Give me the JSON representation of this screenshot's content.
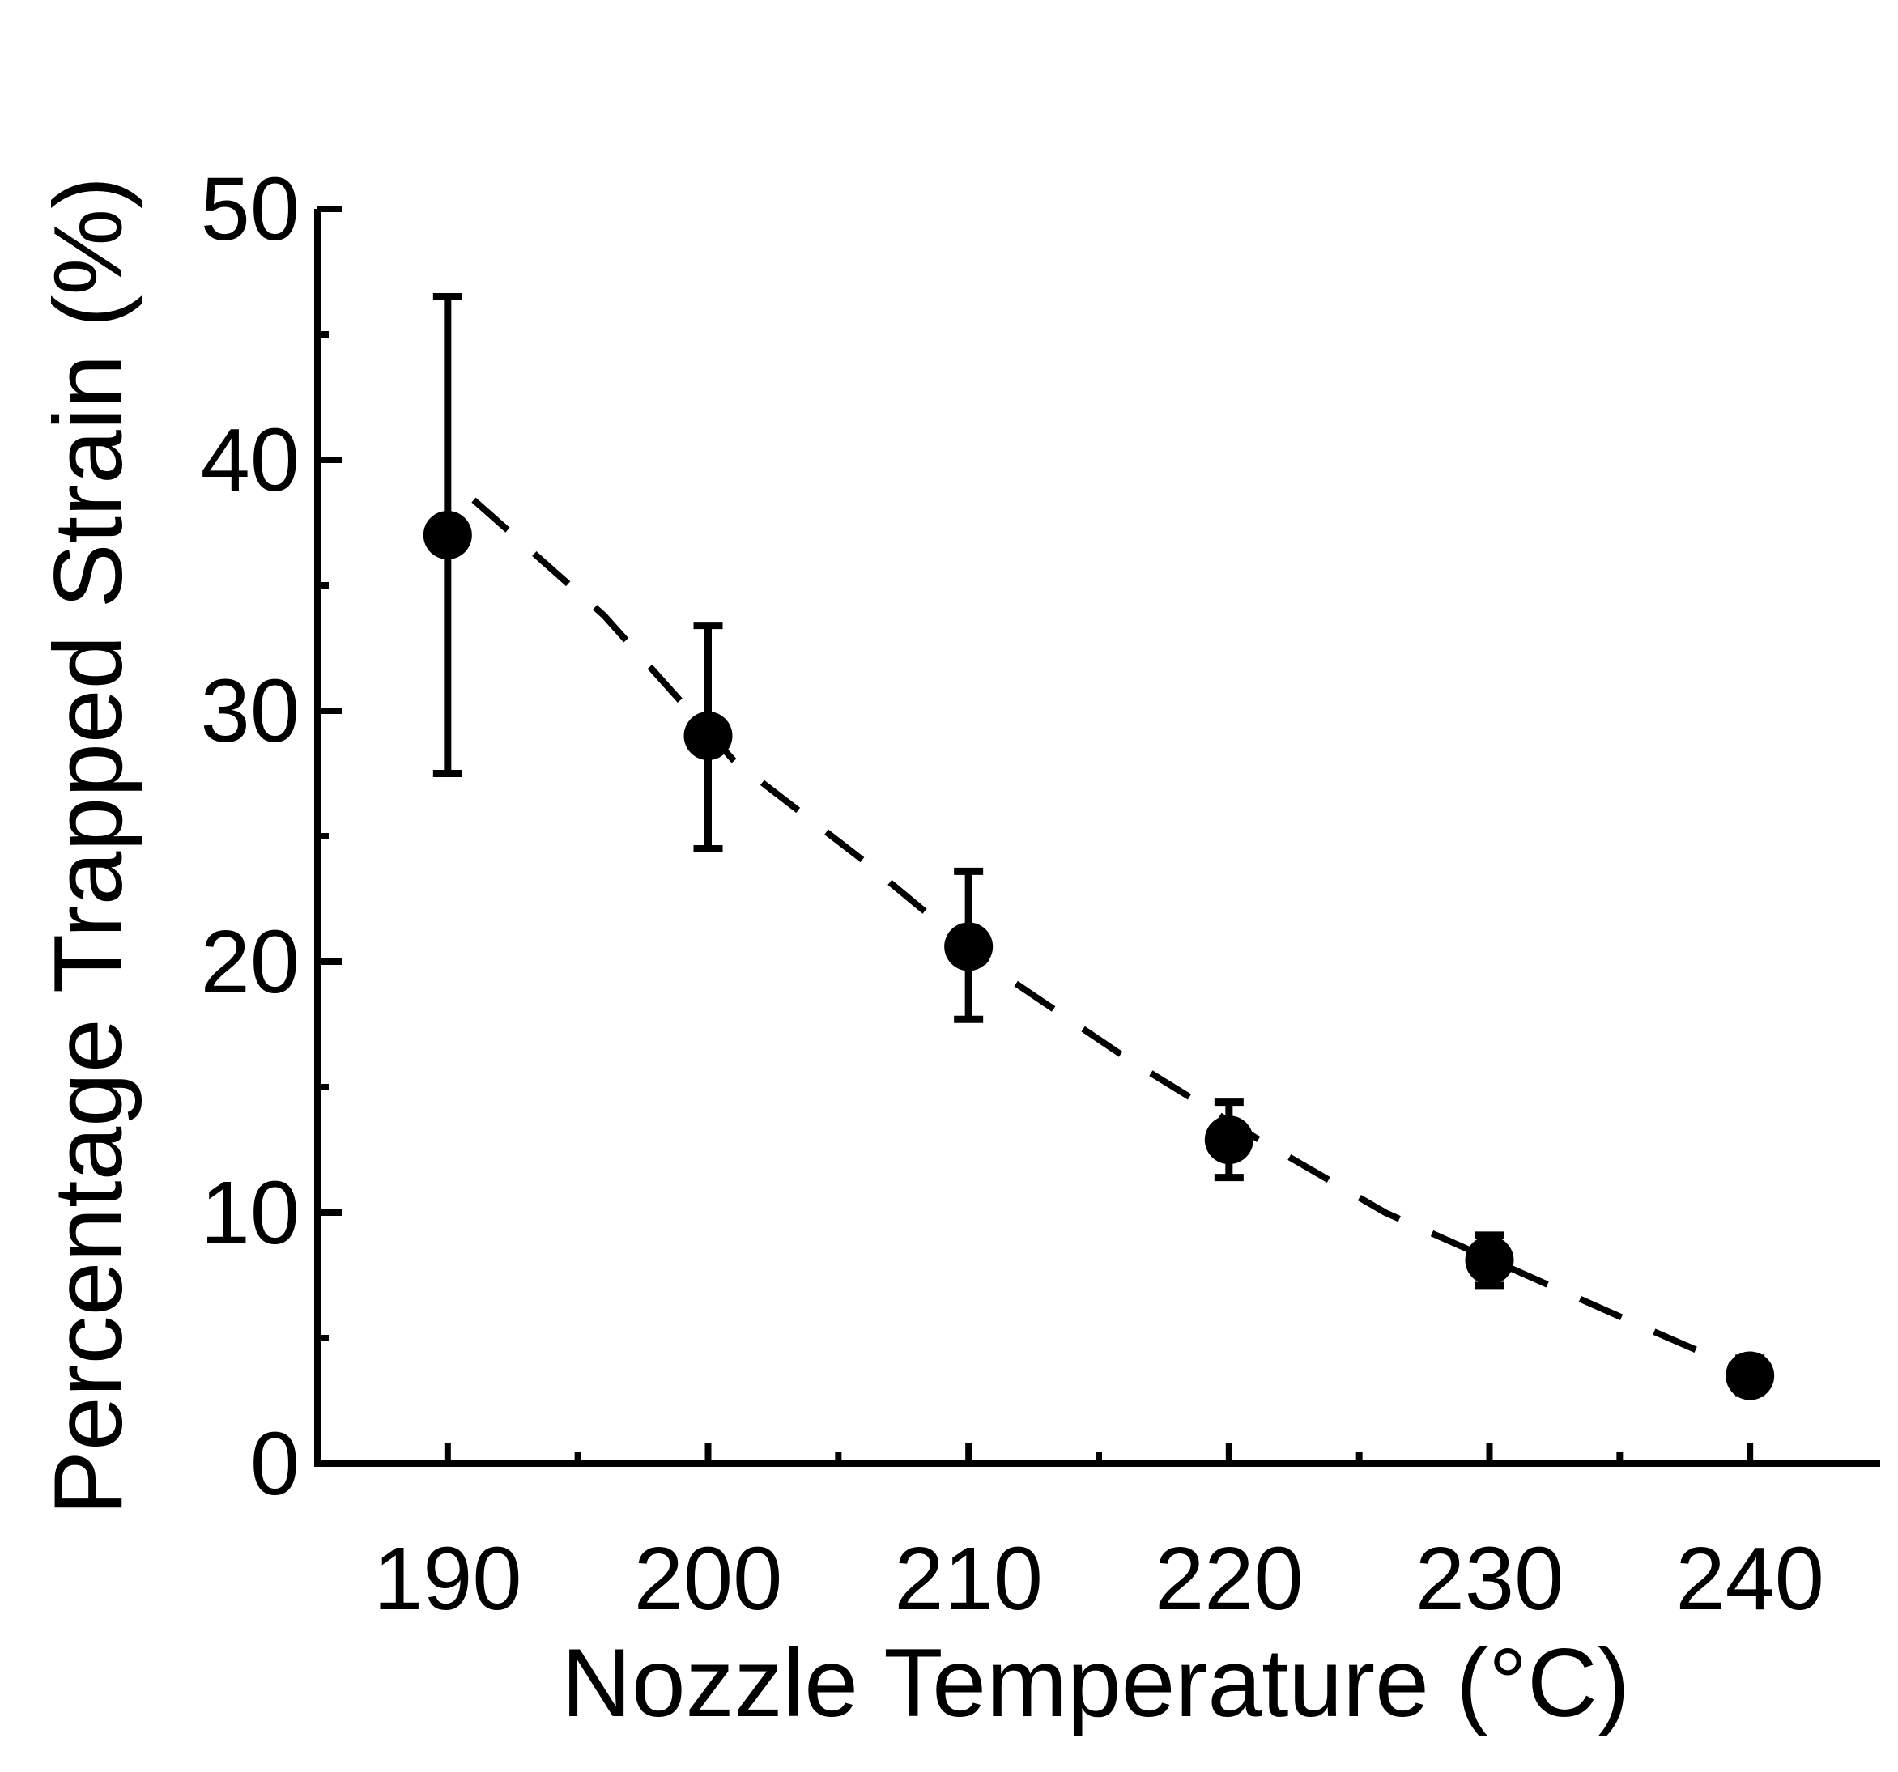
{
  "chart_data": {
    "type": "scatter",
    "title": "",
    "xlabel": "Nozzle Temperature (°C)",
    "ylabel": "Percentage Trapped Strain (%)",
    "xlim": [
      185,
      245
    ],
    "ylim": [
      0,
      50
    ],
    "x_ticks": [
      "190",
      "200",
      "210",
      "220",
      "230",
      "240"
    ],
    "y_ticks": [
      "0",
      "10",
      "20",
      "30",
      "40",
      "50"
    ],
    "grid": false,
    "legend": "none",
    "series": [
      {
        "x": [
          190,
          200,
          210,
          220,
          230,
          240
        ],
        "y": [
          37.0,
          29.0,
          20.6,
          12.9,
          8.1,
          3.5
        ],
        "err_low": [
          27.5,
          24.5,
          17.7,
          11.4,
          7.1,
          2.8
        ],
        "err_high": [
          46.5,
          33.4,
          23.6,
          14.4,
          9.1,
          4.2
        ],
        "marker": "filled-circle"
      }
    ],
    "fit": {
      "style": "dashed",
      "x": [
        191,
        196,
        201,
        206,
        211,
        216,
        221,
        226,
        231,
        236,
        240
      ],
      "y": [
        38.4,
        33.8,
        28.0,
        24.0,
        19.7,
        16.2,
        13.0,
        10.0,
        7.7,
        5.4,
        3.6
      ]
    },
    "colors": {
      "marker": "#000000",
      "axis": "#000000",
      "fit": "#000000"
    }
  }
}
